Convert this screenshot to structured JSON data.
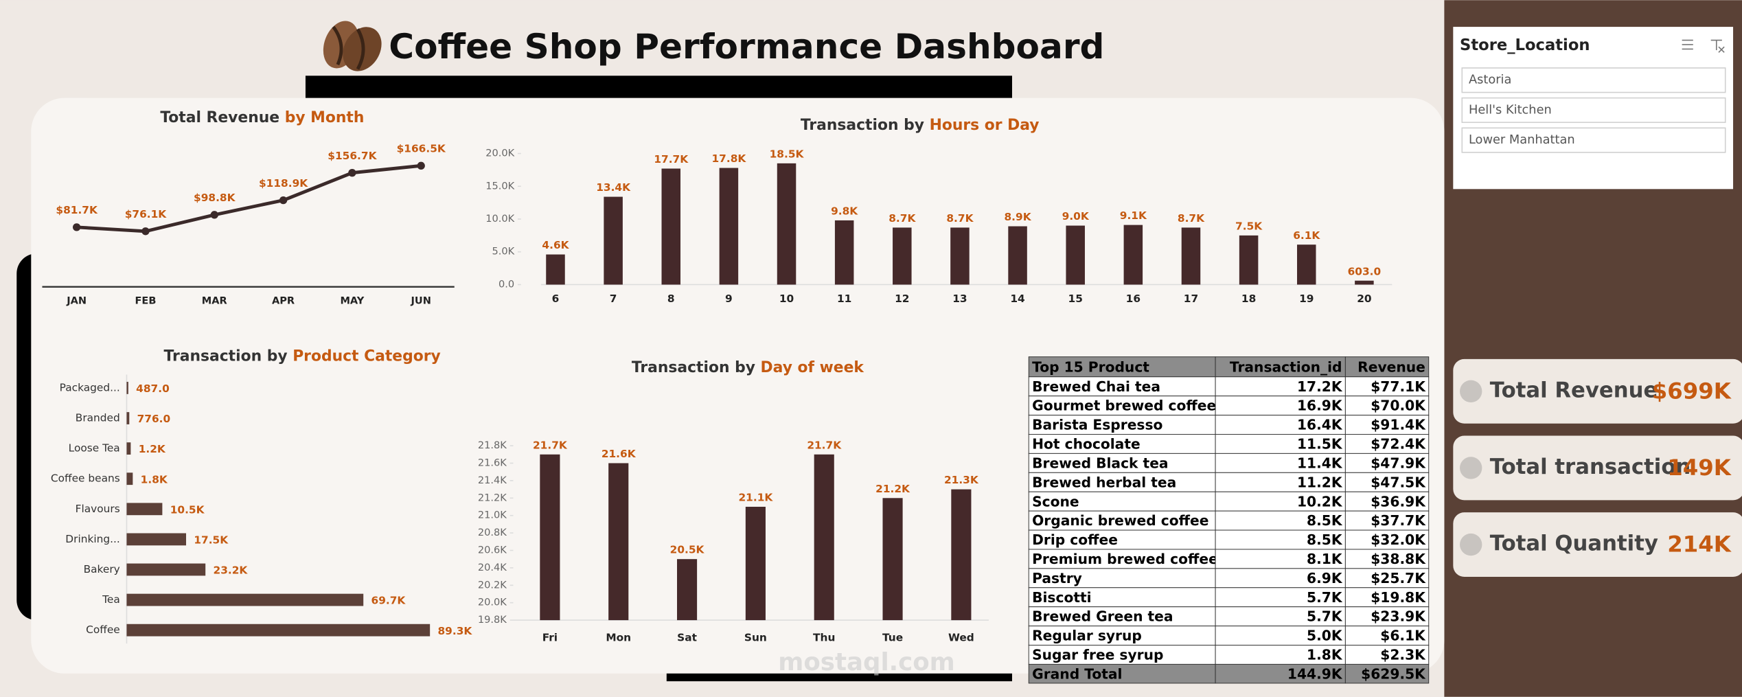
{
  "title": "Coffee Shop Performance Dashboard",
  "watermark": "mostaql.com",
  "slicer": {
    "title": "Store_Location",
    "items": [
      "Astoria",
      "Hell's Kitchen",
      "Lower Manhattan"
    ]
  },
  "kpis": [
    {
      "label": "Total Revenue",
      "value": "$699K"
    },
    {
      "label": "Total transaction",
      "value": "149K"
    },
    {
      "label": "Total Quantity",
      "value": "214K"
    }
  ],
  "table": {
    "header": [
      "Top 15 Product",
      "Transaction_id",
      "Revenue"
    ],
    "rows": [
      [
        "Brewed Chai tea",
        "17.2K",
        "$77.1K"
      ],
      [
        "Gourmet brewed coffee",
        "16.9K",
        "$70.0K"
      ],
      [
        "Barista Espresso",
        "16.4K",
        "$91.4K"
      ],
      [
        "Hot chocolate",
        "11.5K",
        "$72.4K"
      ],
      [
        "Brewed Black tea",
        "11.4K",
        "$47.9K"
      ],
      [
        "Brewed herbal tea",
        "11.2K",
        "$47.5K"
      ],
      [
        "Scone",
        "10.2K",
        "$36.9K"
      ],
      [
        "Organic brewed coffee",
        "8.5K",
        "$37.7K"
      ],
      [
        "Drip coffee",
        "8.5K",
        "$32.0K"
      ],
      [
        "Premium brewed coffee",
        "8.1K",
        "$38.8K"
      ],
      [
        "Pastry",
        "6.9K",
        "$25.7K"
      ],
      [
        "Biscotti",
        "5.7K",
        "$19.8K"
      ],
      [
        "Brewed Green tea",
        "5.7K",
        "$23.9K"
      ],
      [
        "Regular syrup",
        "5.0K",
        "$6.1K"
      ],
      [
        "Sugar free syrup",
        "1.8K",
        "$2.3K"
      ]
    ],
    "total": [
      "Grand Total",
      "144.9K",
      "$629.5K"
    ]
  },
  "chart_data": [
    {
      "type": "line",
      "title": "Total Revenue ",
      "title_accent": "by Month",
      "categories": [
        "JAN",
        "FEB",
        "MAR",
        "APR",
        "MAY",
        "JUN"
      ],
      "values": [
        81.7,
        76.1,
        98.8,
        118.9,
        156.7,
        166.5
      ],
      "value_labels": [
        "$81.7K",
        "$76.1K",
        "$98.8K",
        "$118.9K",
        "$156.7K",
        "$166.5K"
      ],
      "color": "#3b2a2a"
    },
    {
      "type": "bar",
      "title": "Transaction by ",
      "title_accent": "Hours or Day",
      "categories": [
        6,
        7,
        8,
        9,
        10,
        11,
        12,
        13,
        14,
        15,
        16,
        17,
        18,
        19,
        20
      ],
      "values": [
        4600,
        13400,
        17700,
        17800,
        18500,
        9800,
        8700,
        8700,
        8900,
        9000,
        9100,
        8700,
        7500,
        6100,
        603
      ],
      "value_labels": [
        "4.6K",
        "13.4K",
        "17.7K",
        "17.8K",
        "18.5K",
        "9.8K",
        "8.7K",
        "8.7K",
        "8.9K",
        "9.0K",
        "9.1K",
        "8.7K",
        "7.5K",
        "6.1K",
        "603.0"
      ],
      "color": "#45292a",
      "ylim": [
        0,
        20000
      ],
      "yticks": [
        {
          "value": 0,
          "label": "0.0"
        },
        {
          "value": 5000,
          "label": "5.0K"
        },
        {
          "value": 10000,
          "label": "10.0K"
        },
        {
          "value": 15000,
          "label": "15.0K"
        },
        {
          "value": 20000,
          "label": "20.0K"
        }
      ]
    },
    {
      "type": "hbar",
      "title": "Transaction by ",
      "title_accent": "Product Category",
      "categories": [
        "Packaged...",
        "Branded",
        "Loose Tea",
        "Coffee beans",
        "Flavours",
        "Drinking...",
        "Bakery",
        "Tea",
        "Coffee"
      ],
      "values": [
        487,
        776,
        1200,
        1800,
        10500,
        17500,
        23200,
        69700,
        89300
      ],
      "value_labels": [
        "487.0",
        "776.0",
        "1.2K",
        "1.8K",
        "10.5K",
        "17.5K",
        "23.2K",
        "69.7K",
        "89.3K"
      ],
      "color": "#5c4038"
    },
    {
      "type": "bar",
      "title": "Transaction by ",
      "title_accent": "Day of week",
      "categories": [
        "Fri",
        "Mon",
        "Sat",
        "Sun",
        "Thu",
        "Tue",
        "Wed"
      ],
      "values": [
        21700,
        21600,
        20500,
        21100,
        21700,
        21200,
        21300
      ],
      "value_labels": [
        "21.7K",
        "21.6K",
        "20.5K",
        "21.1K",
        "21.7K",
        "21.2K",
        "21.3K"
      ],
      "color": "#45292a",
      "ylim": [
        19800,
        21800
      ],
      "yticks": [
        {
          "value": 19800,
          "label": "19.8K"
        },
        {
          "value": 20000,
          "label": "20.0K"
        },
        {
          "value": 20200,
          "label": "20.2K"
        },
        {
          "value": 20400,
          "label": "20.4K"
        },
        {
          "value": 20600,
          "label": "20.6K"
        },
        {
          "value": 20800,
          "label": "20.8K"
        },
        {
          "value": 21000,
          "label": "21.0K"
        },
        {
          "value": 21200,
          "label": "21.2K"
        },
        {
          "value": 21400,
          "label": "21.4K"
        },
        {
          "value": 21600,
          "label": "21.6K"
        },
        {
          "value": 21800,
          "label": "21.8K"
        }
      ]
    }
  ]
}
